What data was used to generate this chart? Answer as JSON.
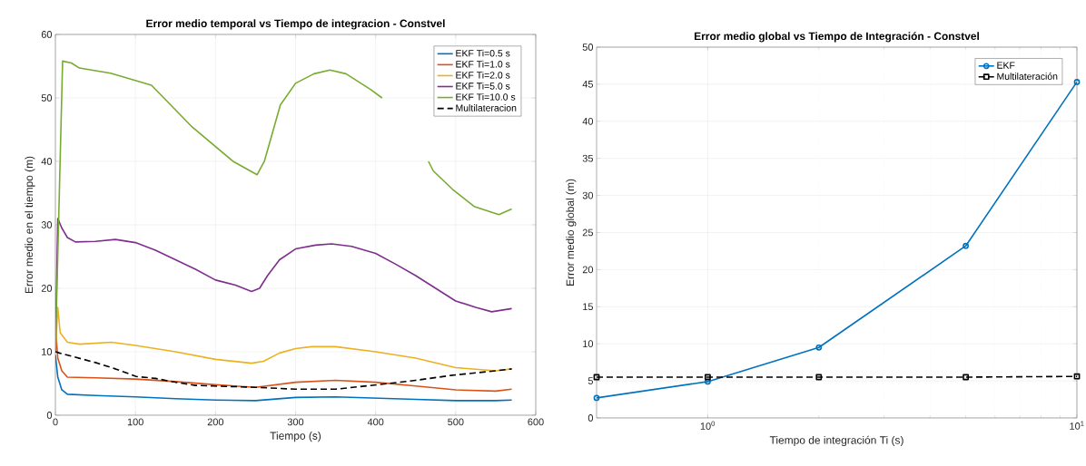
{
  "chart_data": [
    {
      "type": "line",
      "title": "Error medio temporal vs Tiempo de integracion - Constvel",
      "xlabel": "Tiempo (s)",
      "ylabel": "Error medio en el tiempo (m)",
      "xlim": [
        0,
        600
      ],
      "ylim": [
        0,
        60
      ],
      "xticks": [
        0,
        100,
        200,
        300,
        400,
        500,
        600
      ],
      "yticks": [
        0,
        10,
        20,
        30,
        40,
        50,
        60
      ],
      "grid": true,
      "legend": "top right",
      "line_style": "solid",
      "series": [
        {
          "name": "EKF Ti=0.5 s",
          "color": "#0072bd",
          "x": [
            0,
            3,
            8,
            15,
            50,
            100,
            150,
            200,
            250,
            300,
            350,
            400,
            450,
            500,
            550,
            570
          ],
          "values": [
            9.5,
            6,
            4,
            3.3,
            3.1,
            2.9,
            2.6,
            2.4,
            2.3,
            2.8,
            2.9,
            2.7,
            2.5,
            2.3,
            2.3,
            2.4
          ]
        },
        {
          "name": "EKF Ti=1.0 s",
          "color": "#d95319",
          "x": [
            0,
            3,
            8,
            15,
            50,
            100,
            150,
            200,
            250,
            300,
            350,
            400,
            450,
            500,
            550,
            570
          ],
          "values": [
            14,
            9,
            7,
            6,
            5.9,
            5.7,
            5.3,
            4.8,
            4.4,
            5.2,
            5.5,
            5.2,
            4.6,
            4,
            3.8,
            4.1
          ]
        },
        {
          "name": "EKF Ti=2.0 s",
          "color": "#edb120",
          "x": [
            0,
            3,
            6,
            15,
            30,
            70,
            100,
            150,
            200,
            245,
            260,
            280,
            300,
            320,
            350,
            400,
            450,
            500,
            550,
            570
          ],
          "values": [
            10,
            17,
            13,
            11.5,
            11.2,
            11.5,
            11,
            10,
            8.8,
            8.2,
            8.5,
            9.8,
            10.5,
            10.8,
            10.8,
            10,
            9,
            7.5,
            7,
            7.3
          ]
        },
        {
          "name": "EKF Ti=5.0 s",
          "color": "#7e2f8e",
          "x": [
            0,
            3,
            8,
            15,
            25,
            50,
            75,
            100,
            125,
            150,
            175,
            200,
            225,
            245,
            255,
            265,
            280,
            300,
            325,
            345,
            370,
            400,
            425,
            450,
            475,
            500,
            525,
            545,
            570
          ],
          "values": [
            10,
            31,
            29.5,
            28,
            27.3,
            27.4,
            27.7,
            27.2,
            26,
            24.5,
            23,
            21.3,
            20.5,
            19.5,
            20,
            22,
            24.5,
            26.2,
            26.8,
            27,
            26.6,
            25.5,
            23.8,
            22,
            20,
            18,
            17,
            16.3,
            16.8
          ]
        },
        {
          "name": "EKF Ti=10.0 s",
          "color": "#77ac30",
          "x": [
            0,
            9,
            20,
            30,
            69,
            120,
            171,
            222,
            252,
            261,
            281,
            300,
            323,
            343,
            363,
            394,
            408,
            435,
            466,
            472,
            496,
            523,
            554,
            570
          ],
          "values": [
            10,
            55.8,
            55.5,
            54.7,
            53.9,
            52,
            45.4,
            40,
            37.9,
            40,
            48.9,
            52.3,
            53.8,
            54.4,
            53.8,
            51.3,
            50,
            null,
            40,
            38.5,
            35.6,
            32.9,
            31.6,
            32.5
          ]
        },
        {
          "name": "Multilateracion",
          "color": "#000000",
          "line_style": "dashed",
          "x": [
            0,
            5,
            20,
            50,
            75,
            101,
            125,
            150,
            175,
            198,
            250,
            300,
            350,
            402,
            450,
            496,
            550,
            570
          ],
          "values": [
            10,
            9.8,
            9.3,
            8.3,
            7.3,
            6.1,
            5.8,
            5.2,
            4.7,
            4.6,
            4.4,
            4.1,
            4.1,
            4.8,
            5.5,
            6.3,
            7,
            7.3
          ]
        }
      ]
    },
    {
      "type": "line",
      "title": "Error medio global vs Tiempo de Integración - Constvel",
      "xlabel": "Tiempo de integración Ti (s)",
      "ylabel": "Error medio global (m)",
      "log": "x",
      "xlim": [
        0.5,
        10
      ],
      "ylim": [
        0,
        50
      ],
      "xticks": [
        {
          "value": 1,
          "label": "10$^{0}$"
        },
        {
          "value": 10,
          "label": "10$^{1}$"
        }
      ],
      "yticks": [
        0,
        5,
        10,
        15,
        20,
        25,
        30,
        35,
        40,
        45,
        50
      ],
      "grid": true,
      "legend": "top right",
      "series": [
        {
          "name": "EKF",
          "color": "#0072bd",
          "marker": "circle",
          "line_style": "solid",
          "x": [
            0.5,
            1,
            2,
            5,
            10
          ],
          "values": [
            2.7,
            4.9,
            9.5,
            23.2,
            45.3
          ]
        },
        {
          "name": "Multilateración",
          "color": "#000000",
          "marker": "square",
          "line_style": "dashed",
          "x": [
            0.5,
            1,
            2,
            5,
            10
          ],
          "values": [
            5.5,
            5.5,
            5.5,
            5.5,
            5.6
          ]
        }
      ]
    }
  ]
}
